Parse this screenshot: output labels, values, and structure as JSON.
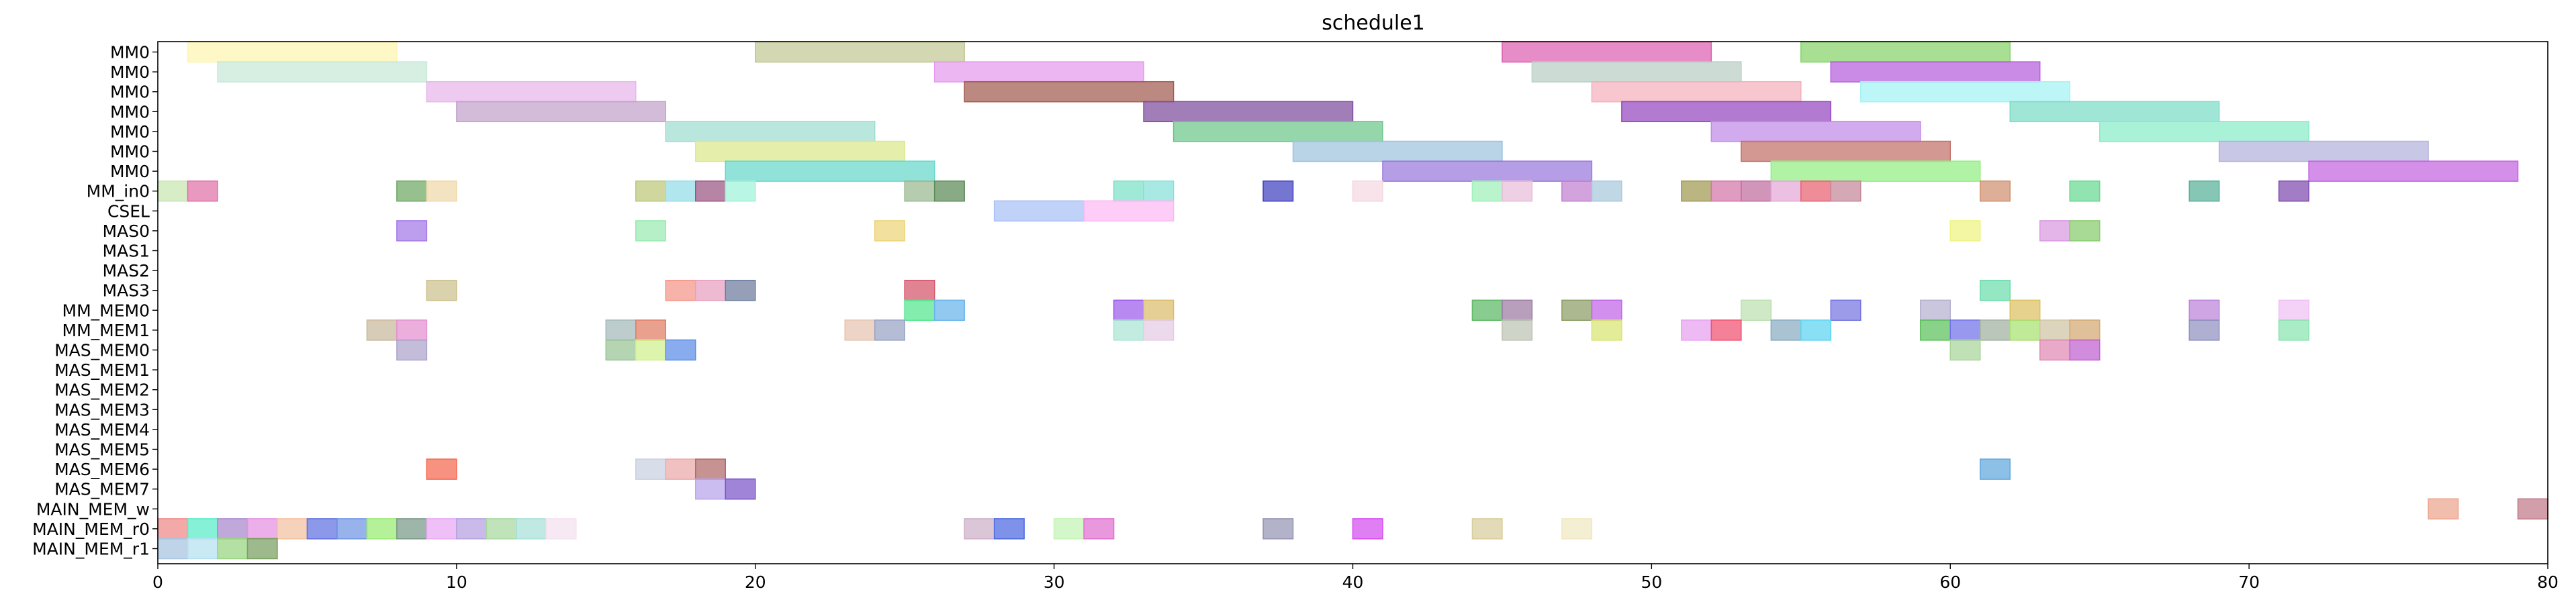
{
  "chart_data": {
    "type": "gantt",
    "title": "schedule1",
    "xlim": [
      0,
      80
    ],
    "x_ticks": [
      0,
      10,
      20,
      30,
      40,
      50,
      60,
      70,
      80
    ],
    "grid": false,
    "legend": "none",
    "rows": [
      "MM0",
      "MM0",
      "MM0",
      "MM0",
      "MM0",
      "MM0",
      "MM0",
      "MM_in0",
      "CSEL",
      "MAS0",
      "MAS1",
      "MAS2",
      "MAS3",
      "MM_MEM0",
      "MM_MEM1",
      "MAS_MEM0",
      "MAS_MEM1",
      "MAS_MEM2",
      "MAS_MEM3",
      "MAS_MEM4",
      "MAS_MEM5",
      "MAS_MEM6",
      "MAS_MEM7",
      "MAIN_MEM_w",
      "MAIN_MEM_r0",
      "MAIN_MEM_r1"
    ],
    "bars": [
      {
        "row": 0,
        "start": 1,
        "end": 8,
        "color": "#fdf5b0"
      },
      {
        "row": 0,
        "start": 20,
        "end": 27,
        "color": "#c2c794"
      },
      {
        "row": 0,
        "start": 45,
        "end": 52,
        "color": "#dd5fb0"
      },
      {
        "row": 0,
        "start": 55,
        "end": 62,
        "color": "#86d26a"
      },
      {
        "row": 1,
        "start": 2,
        "end": 9,
        "color": "#c8e8d8"
      },
      {
        "row": 1,
        "start": 26,
        "end": 33,
        "color": "#e59aee"
      },
      {
        "row": 1,
        "start": 46,
        "end": 53,
        "color": "#b8cfc4"
      },
      {
        "row": 1,
        "start": 56,
        "end": 63,
        "color": "#b65edc"
      },
      {
        "row": 2,
        "start": 9,
        "end": 16,
        "color": "#e8b6ec"
      },
      {
        "row": 2,
        "start": 27,
        "end": 34,
        "color": "#a25c50"
      },
      {
        "row": 2,
        "start": 48,
        "end": 55,
        "color": "#f4b0bd"
      },
      {
        "row": 2,
        "start": 57,
        "end": 64,
        "color": "#a4f2f4"
      },
      {
        "row": 3,
        "start": 10,
        "end": 17,
        "color": "#c2a2cc"
      },
      {
        "row": 3,
        "start": 33,
        "end": 40,
        "color": "#7e4c9e"
      },
      {
        "row": 3,
        "start": 49,
        "end": 56,
        "color": "#9446be"
      },
      {
        "row": 3,
        "start": 62,
        "end": 69,
        "color": "#7cdcc8"
      },
      {
        "row": 4,
        "start": 17,
        "end": 24,
        "color": "#9edcd0"
      },
      {
        "row": 4,
        "start": 34,
        "end": 41,
        "color": "#6cc68a"
      },
      {
        "row": 4,
        "start": 52,
        "end": 59,
        "color": "#c08ae8"
      },
      {
        "row": 4,
        "start": 65,
        "end": 72,
        "color": "#88ecc8"
      },
      {
        "row": 5,
        "start": 18,
        "end": 25,
        "color": "#dce88c"
      },
      {
        "row": 5,
        "start": 38,
        "end": 45,
        "color": "#9ec2de"
      },
      {
        "row": 5,
        "start": 53,
        "end": 60,
        "color": "#c4706a"
      },
      {
        "row": 5,
        "start": 69,
        "end": 76,
        "color": "#b4b2dc"
      },
      {
        "row": 6,
        "start": 19,
        "end": 26,
        "color": "#66d8cc"
      },
      {
        "row": 6,
        "start": 41,
        "end": 48,
        "color": "#9a78dc"
      },
      {
        "row": 6,
        "start": 54,
        "end": 61,
        "color": "#92ee82"
      },
      {
        "row": 6,
        "start": 72,
        "end": 79,
        "color": "#c464e0"
      },
      {
        "row": 7,
        "start": 0,
        "end": 1,
        "color": "#c8e6b0"
      },
      {
        "row": 7,
        "start": 1,
        "end": 2,
        "color": "#e070a8"
      },
      {
        "row": 7,
        "start": 8,
        "end": 9,
        "color": "#6ea862"
      },
      {
        "row": 7,
        "start": 9,
        "end": 10,
        "color": "#f0d8a8"
      },
      {
        "row": 7,
        "start": 16,
        "end": 17,
        "color": "#bcc878"
      },
      {
        "row": 7,
        "start": 17,
        "end": 18,
        "color": "#94dce8"
      },
      {
        "row": 7,
        "start": 18,
        "end": 19,
        "color": "#9a5482"
      },
      {
        "row": 7,
        "start": 19,
        "end": 20,
        "color": "#9ef2d8"
      },
      {
        "row": 7,
        "start": 25,
        "end": 26,
        "color": "#98b890"
      },
      {
        "row": 7,
        "start": 26,
        "end": 27,
        "color": "#5a8a58"
      },
      {
        "row": 7,
        "start": 32,
        "end": 33,
        "color": "#7ce0c8"
      },
      {
        "row": 7,
        "start": 33,
        "end": 34,
        "color": "#88e0d8"
      },
      {
        "row": 7,
        "start": 37,
        "end": 38,
        "color": "#4040c0"
      },
      {
        "row": 7,
        "start": 40,
        "end": 41,
        "color": "#f4d8e0"
      },
      {
        "row": 7,
        "start": 44,
        "end": 45,
        "color": "#9ef0b8"
      },
      {
        "row": 7,
        "start": 45,
        "end": 46,
        "color": "#e8bcd8"
      },
      {
        "row": 7,
        "start": 47,
        "end": 48,
        "color": "#c080d0"
      },
      {
        "row": 7,
        "start": 48,
        "end": 49,
        "color": "#a8c8dc"
      },
      {
        "row": 7,
        "start": 51,
        "end": 52,
        "color": "#a09850"
      },
      {
        "row": 7,
        "start": 52,
        "end": 53,
        "color": "#d474a8"
      },
      {
        "row": 7,
        "start": 53,
        "end": 54,
        "color": "#c06ca0"
      },
      {
        "row": 7,
        "start": 54,
        "end": 55,
        "color": "#e4a8d8"
      },
      {
        "row": 7,
        "start": 55,
        "end": 56,
        "color": "#e86070"
      },
      {
        "row": 7,
        "start": 56,
        "end": 57,
        "color": "#c48898"
      },
      {
        "row": 7,
        "start": 61,
        "end": 62,
        "color": "#d09070"
      },
      {
        "row": 7,
        "start": 64,
        "end": 65,
        "color": "#66d890"
      },
      {
        "row": 7,
        "start": 68,
        "end": 69,
        "color": "#58b098"
      },
      {
        "row": 7,
        "start": 71,
        "end": 72,
        "color": "#804ab0"
      },
      {
        "row": 8,
        "start": 28,
        "end": 31,
        "color": "#a8c0f4"
      },
      {
        "row": 8,
        "start": 31,
        "end": 34,
        "color": "#fcb8f4"
      },
      {
        "row": 9,
        "start": 8,
        "end": 9,
        "color": "#a478e8"
      },
      {
        "row": 9,
        "start": 16,
        "end": 17,
        "color": "#98eab0"
      },
      {
        "row": 9,
        "start": 24,
        "end": 25,
        "color": "#ecd478"
      },
      {
        "row": 9,
        "start": 60,
        "end": 61,
        "color": "#eef480"
      },
      {
        "row": 9,
        "start": 63,
        "end": 64,
        "color": "#d898e0"
      },
      {
        "row": 9,
        "start": 64,
        "end": 65,
        "color": "#88cc6c"
      },
      {
        "row": 12,
        "start": 9,
        "end": 10,
        "color": "#ccc08c"
      },
      {
        "row": 12,
        "start": 17,
        "end": 18,
        "color": "#f49488"
      },
      {
        "row": 12,
        "start": 18,
        "end": 19,
        "color": "#e8a0c0"
      },
      {
        "row": 12,
        "start": 19,
        "end": 20,
        "color": "#6c7c9c"
      },
      {
        "row": 12,
        "start": 25,
        "end": 26,
        "color": "#d4546a"
      },
      {
        "row": 12,
        "start": 61,
        "end": 62,
        "color": "#6cdcac"
      },
      {
        "row": 13,
        "start": 25,
        "end": 26,
        "color": "#52e68c"
      },
      {
        "row": 13,
        "start": 26,
        "end": 27,
        "color": "#66b4ec"
      },
      {
        "row": 13,
        "start": 32,
        "end": 33,
        "color": "#9c5cec"
      },
      {
        "row": 13,
        "start": 33,
        "end": 34,
        "color": "#dcbc6c"
      },
      {
        "row": 13,
        "start": 44,
        "end": 45,
        "color": "#5cb864"
      },
      {
        "row": 13,
        "start": 45,
        "end": 46,
        "color": "#9c7ca4"
      },
      {
        "row": 13,
        "start": 47,
        "end": 48,
        "color": "#8c9c64"
      },
      {
        "row": 13,
        "start": 48,
        "end": 49,
        "color": "#c064e8"
      },
      {
        "row": 13,
        "start": 53,
        "end": 54,
        "color": "#bce0b0"
      },
      {
        "row": 13,
        "start": 56,
        "end": 57,
        "color": "#7474e0"
      },
      {
        "row": 13,
        "start": 59,
        "end": 60,
        "color": "#b4b0d0"
      },
      {
        "row": 13,
        "start": 62,
        "end": 63,
        "color": "#dcc060"
      },
      {
        "row": 13,
        "start": 68,
        "end": 69,
        "color": "#bc84d8"
      },
      {
        "row": 13,
        "start": 71,
        "end": 72,
        "color": "#f0c0f4"
      },
      {
        "row": 14,
        "start": 7,
        "end": 8,
        "color": "#c8b89c"
      },
      {
        "row": 14,
        "start": 8,
        "end": 9,
        "color": "#e490d0"
      },
      {
        "row": 14,
        "start": 15,
        "end": 16,
        "color": "#a4b8b8"
      },
      {
        "row": 14,
        "start": 16,
        "end": 17,
        "color": "#e07c64"
      },
      {
        "row": 14,
        "start": 23,
        "end": 24,
        "color": "#e8c4b0"
      },
      {
        "row": 14,
        "start": 24,
        "end": 25,
        "color": "#98a4c4"
      },
      {
        "row": 14,
        "start": 32,
        "end": 33,
        "color": "#ace4d4"
      },
      {
        "row": 14,
        "start": 33,
        "end": 34,
        "color": "#e4cce4"
      },
      {
        "row": 14,
        "start": 45,
        "end": 46,
        "color": "#bcc4b4"
      },
      {
        "row": 14,
        "start": 48,
        "end": 49,
        "color": "#d8e470"
      },
      {
        "row": 14,
        "start": 51,
        "end": 52,
        "color": "#e8a0f0"
      },
      {
        "row": 14,
        "start": 52,
        "end": 53,
        "color": "#f05070"
      },
      {
        "row": 14,
        "start": 54,
        "end": 55,
        "color": "#88acc0"
      },
      {
        "row": 14,
        "start": 55,
        "end": 56,
        "color": "#5cd4f0"
      },
      {
        "row": 14,
        "start": 59,
        "end": 60,
        "color": "#5cc05c"
      },
      {
        "row": 14,
        "start": 60,
        "end": 61,
        "color": "#7070e8"
      },
      {
        "row": 14,
        "start": 61,
        "end": 62,
        "color": "#a0b0a0"
      },
      {
        "row": 14,
        "start": 62,
        "end": 63,
        "color": "#a8e070"
      },
      {
        "row": 14,
        "start": 63,
        "end": 64,
        "color": "#d0c4a4"
      },
      {
        "row": 14,
        "start": 64,
        "end": 65,
        "color": "#d4a870"
      },
      {
        "row": 14,
        "start": 68,
        "end": 69,
        "color": "#9090c0"
      },
      {
        "row": 14,
        "start": 71,
        "end": 72,
        "color": "#88e4b0"
      },
      {
        "row": 15,
        "start": 8,
        "end": 9,
        "color": "#aca4cc"
      },
      {
        "row": 15,
        "start": 15,
        "end": 16,
        "color": "#98c494"
      },
      {
        "row": 15,
        "start": 16,
        "end": 17,
        "color": "#d0f08c"
      },
      {
        "row": 15,
        "start": 17,
        "end": 18,
        "color": "#5c8ce8"
      },
      {
        "row": 15,
        "start": 60,
        "end": 61,
        "color": "#a8d498"
      },
      {
        "row": 15,
        "start": 63,
        "end": 64,
        "color": "#e088b4"
      },
      {
        "row": 15,
        "start": 64,
        "end": 65,
        "color": "#c060d0"
      },
      {
        "row": 21,
        "start": 9,
        "end": 10,
        "color": "#f46850"
      },
      {
        "row": 21,
        "start": 16,
        "end": 17,
        "color": "#c8d0e0"
      },
      {
        "row": 21,
        "start": 17,
        "end": 18,
        "color": "#eca8a8"
      },
      {
        "row": 21,
        "start": 18,
        "end": 19,
        "color": "#b06868"
      },
      {
        "row": 21,
        "start": 61,
        "end": 62,
        "color": "#60a8dc"
      },
      {
        "row": 22,
        "start": 18,
        "end": 19,
        "color": "#b8a4ec"
      },
      {
        "row": 22,
        "start": 19,
        "end": 20,
        "color": "#7c54c8"
      },
      {
        "row": 23,
        "start": 76,
        "end": 77,
        "color": "#eca48c"
      },
      {
        "row": 23,
        "start": 79,
        "end": 80,
        "color": "#c07888"
      },
      {
        "row": 24,
        "start": 0,
        "end": 1,
        "color": "#f08888"
      },
      {
        "row": 24,
        "start": 1,
        "end": 2,
        "color": "#58ecc8"
      },
      {
        "row": 24,
        "start": 2,
        "end": 3,
        "color": "#a888cc"
      },
      {
        "row": 24,
        "start": 3,
        "end": 4,
        "color": "#e490e0"
      },
      {
        "row": 24,
        "start": 4,
        "end": 5,
        "color": "#f4c0a0"
      },
      {
        "row": 24,
        "start": 5,
        "end": 6,
        "color": "#6070e0"
      },
      {
        "row": 24,
        "start": 6,
        "end": 7,
        "color": "#7094e4"
      },
      {
        "row": 24,
        "start": 7,
        "end": 8,
        "color": "#98ec70"
      },
      {
        "row": 24,
        "start": 8,
        "end": 9,
        "color": "#789888"
      },
      {
        "row": 24,
        "start": 9,
        "end": 10,
        "color": "#e8a8f4"
      },
      {
        "row": 24,
        "start": 10,
        "end": 11,
        "color": "#b4a0e0"
      },
      {
        "row": 24,
        "start": 11,
        "end": 12,
        "color": "#a8d8a0"
      },
      {
        "row": 24,
        "start": 12,
        "end": 13,
        "color": "#a8e0d8"
      },
      {
        "row": 24,
        "start": 13,
        "end": 14,
        "color": "#f4e0f0"
      },
      {
        "row": 24,
        "start": 27,
        "end": 28,
        "color": "#ccb0c8"
      },
      {
        "row": 24,
        "start": 28,
        "end": 29,
        "color": "#4c68e0"
      },
      {
        "row": 24,
        "start": 30,
        "end": 31,
        "color": "#c4f4b4"
      },
      {
        "row": 24,
        "start": 31,
        "end": 32,
        "color": "#e070d0"
      },
      {
        "row": 24,
        "start": 37,
        "end": 38,
        "color": "#9494b4"
      },
      {
        "row": 24,
        "start": 40,
        "end": 41,
        "color": "#d44cf0"
      },
      {
        "row": 24,
        "start": 44,
        "end": 45,
        "color": "#d8cc9c"
      },
      {
        "row": 24,
        "start": 47,
        "end": 48,
        "color": "#f0e8c0"
      },
      {
        "row": 25,
        "start": 0,
        "end": 1,
        "color": "#a8c4e0"
      },
      {
        "row": 25,
        "start": 1,
        "end": 2,
        "color": "#b4e0f0"
      },
      {
        "row": 25,
        "start": 2,
        "end": 3,
        "color": "#98d480"
      },
      {
        "row": 25,
        "start": 3,
        "end": 4,
        "color": "#78a060"
      }
    ]
  }
}
